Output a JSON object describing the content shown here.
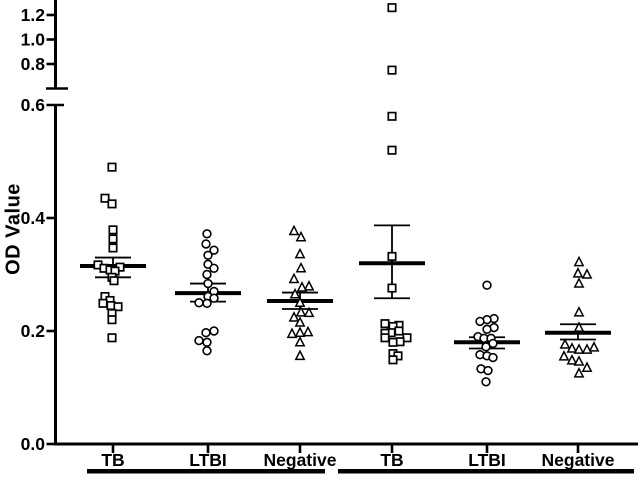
{
  "figure": {
    "background": "#ffffff",
    "ink_color": "#000000"
  },
  "chart_data": {
    "type": "scatter",
    "title": "",
    "xlabel": "",
    "ylabel": "OD Value",
    "legend": "none",
    "grid": false,
    "y_axis": {
      "axis_break": true,
      "lower_range": [
        0.0,
        0.62
      ],
      "upper_range": [
        0.7,
        1.33
      ],
      "lower_tick_values": [
        0.0,
        0.2,
        0.4,
        0.6
      ],
      "lower_tick_labels": [
        "0.0",
        "0.2",
        "0.4",
        "0.6"
      ],
      "upper_tick_values": [
        0.8,
        1.0,
        1.2
      ],
      "upper_tick_labels": [
        "0.8",
        "1.0",
        "1.2"
      ]
    },
    "x_tick_labels": [
      "TB",
      "LTBI",
      "Negative",
      "TB",
      "LTBI",
      "Negative"
    ],
    "groups": [
      {
        "cohort": "left",
        "label": "TB",
        "marker": "square",
        "mean": 0.315,
        "err_low": 0.295,
        "err_high": 0.33,
        "points": [
          [
            0.49,
            -1
          ],
          [
            0.435,
            -8
          ],
          [
            0.425,
            -1
          ],
          [
            0.379,
            0
          ],
          [
            0.363,
            0
          ],
          [
            0.347,
            0
          ],
          [
            0.317,
            -15
          ],
          [
            0.313,
            7
          ],
          [
            0.311,
            -9
          ],
          [
            0.308,
            -3
          ],
          [
            0.306,
            2
          ],
          [
            0.295,
            -1
          ],
          [
            0.289,
            1
          ],
          [
            0.261,
            -8
          ],
          [
            0.254,
            -3
          ],
          [
            0.249,
            -10
          ],
          [
            0.245,
            -2
          ],
          [
            0.243,
            5
          ],
          [
            0.231,
            -1
          ],
          [
            0.22,
            -1
          ],
          [
            0.188,
            -1
          ]
        ]
      },
      {
        "cohort": "left",
        "label": "LTBI",
        "marker": "circle",
        "mean": 0.267,
        "err_low": 0.252,
        "err_high": 0.284,
        "points": [
          [
            0.372,
            -1
          ],
          [
            0.354,
            -2
          ],
          [
            0.343,
            6
          ],
          [
            0.334,
            0
          ],
          [
            0.318,
            0
          ],
          [
            0.311,
            6
          ],
          [
            0.3,
            -1
          ],
          [
            0.284,
            0
          ],
          [
            0.27,
            6
          ],
          [
            0.261,
            0
          ],
          [
            0.258,
            6
          ],
          [
            0.25,
            -9
          ],
          [
            0.249,
            -1
          ],
          [
            0.2,
            6
          ],
          [
            0.197,
            -2
          ],
          [
            0.183,
            -9
          ],
          [
            0.18,
            -1
          ],
          [
            0.165,
            -1
          ]
        ]
      },
      {
        "cohort": "left",
        "label": "Negative",
        "marker": "triangle",
        "mean": 0.253,
        "err_low": 0.239,
        "err_high": 0.268,
        "points": [
          [
            0.377,
            -6
          ],
          [
            0.366,
            1
          ],
          [
            0.336,
            0
          ],
          [
            0.311,
            1
          ],
          [
            0.292,
            -6
          ],
          [
            0.279,
            9
          ],
          [
            0.277,
            2
          ],
          [
            0.265,
            -5
          ],
          [
            0.25,
            0
          ],
          [
            0.233,
            1
          ],
          [
            0.232,
            9
          ],
          [
            0.224,
            -6
          ],
          [
            0.215,
            0
          ],
          [
            0.198,
            8
          ],
          [
            0.197,
            0
          ],
          [
            0.195,
            -8
          ],
          [
            0.18,
            0
          ],
          [
            0.156,
            0
          ]
        ]
      },
      {
        "cohort": "right",
        "label": "TB",
        "marker": "square",
        "mean": 0.32,
        "err_low": 0.258,
        "err_high": 0.387,
        "points": [
          [
            1.26,
            0
          ],
          [
            0.75,
            0
          ],
          [
            0.58,
            0
          ],
          [
            0.52,
            0
          ],
          [
            0.332,
            0
          ],
          [
            0.276,
            0
          ],
          [
            0.213,
            -7
          ],
          [
            0.21,
            7
          ],
          [
            0.208,
            1
          ],
          [
            0.2,
            7
          ],
          [
            0.197,
            -1
          ],
          [
            0.196,
            -7
          ],
          [
            0.188,
            -7
          ],
          [
            0.188,
            15
          ],
          [
            0.181,
            8
          ],
          [
            0.18,
            1
          ],
          [
            0.16,
            1
          ],
          [
            0.156,
            6
          ],
          [
            0.149,
            1
          ]
        ]
      },
      {
        "cohort": "right",
        "label": "LTBI",
        "marker": "circle",
        "mean": 0.18,
        "err_low": 0.169,
        "err_high": 0.189,
        "points": [
          [
            0.281,
            0
          ],
          [
            0.222,
            7
          ],
          [
            0.22,
            0
          ],
          [
            0.217,
            -7
          ],
          [
            0.206,
            7
          ],
          [
            0.203,
            0
          ],
          [
            0.19,
            -9
          ],
          [
            0.187,
            -3
          ],
          [
            0.187,
            4
          ],
          [
            0.178,
            6
          ],
          [
            0.172,
            -1
          ],
          [
            0.158,
            -7
          ],
          [
            0.156,
            0
          ],
          [
            0.153,
            6
          ],
          [
            0.133,
            -6
          ],
          [
            0.13,
            1
          ],
          [
            0.11,
            -1
          ]
        ]
      },
      {
        "cohort": "right",
        "label": "Negative",
        "marker": "triangle",
        "mean": 0.197,
        "err_low": 0.185,
        "err_high": 0.212,
        "points": [
          [
            0.322,
            1
          ],
          [
            0.302,
            0
          ],
          [
            0.3,
            9
          ],
          [
            0.284,
            1
          ],
          [
            0.233,
            1
          ],
          [
            0.206,
            1
          ],
          [
            0.176,
            -13
          ],
          [
            0.171,
            16
          ],
          [
            0.169,
            -6
          ],
          [
            0.167,
            1
          ],
          [
            0.167,
            9
          ],
          [
            0.155,
            -14
          ],
          [
            0.148,
            -6
          ],
          [
            0.146,
            1
          ],
          [
            0.135,
            9
          ],
          [
            0.125,
            1
          ]
        ]
      }
    ],
    "cohort_brackets": [
      {
        "group_indices": [
          0,
          1,
          2
        ]
      },
      {
        "group_indices": [
          3,
          4,
          5
        ]
      }
    ]
  }
}
